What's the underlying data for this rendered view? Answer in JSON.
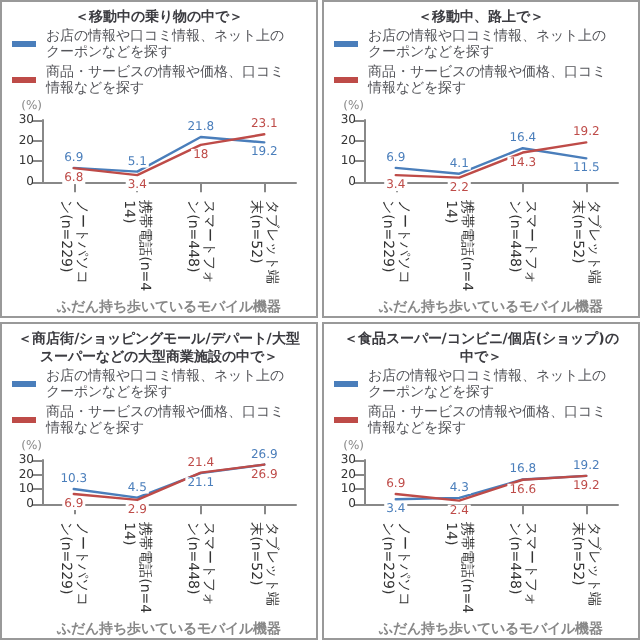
{
  "chart_data": [
    {
      "type": "line",
      "title": "＜移動中の乗り物の中で＞",
      "xlabel": "ふだん持ち歩いているモバイル機器",
      "ylabel": "(%)",
      "categories": [
        "ノートパソコン(n=229)",
        "携帯電話(n=414)",
        "スマートフォン(n=448)",
        "タブレット端末(n=52)"
      ],
      "series": [
        {
          "name": "お店の情報や口コミ情報、ネット上のクーポンなどを探す",
          "color": "#4a7ebb",
          "values": [
            6.9,
            5.1,
            21.8,
            19.2
          ]
        },
        {
          "name": "商品・サービスの情報や価格、口コミ情報などを探す",
          "color": "#be4b48",
          "values": [
            6.8,
            3.4,
            18.0,
            23.1
          ]
        }
      ],
      "ylim": [
        0,
        30
      ],
      "yticks": [
        0,
        10,
        20,
        30
      ],
      "grid": false,
      "legend": "top left",
      "marker": "none",
      "line_style": "solid",
      "data_labels": true
    },
    {
      "type": "line",
      "title": "＜移動中、路上で＞",
      "xlabel": "ふだん持ち歩いているモバイル機器",
      "ylabel": "(%)",
      "categories": [
        "ノートパソコン(n=229)",
        "携帯電話(n=414)",
        "スマートフォン(n=448)",
        "タブレット端末(n=52)"
      ],
      "series": [
        {
          "name": "お店の情報や口コミ情報、ネット上のクーポンなどを探す",
          "color": "#4a7ebb",
          "values": [
            6.9,
            4.1,
            16.4,
            11.5
          ]
        },
        {
          "name": "商品・サービスの情報や価格、口コミ情報などを探す",
          "color": "#be4b48",
          "values": [
            3.4,
            2.2,
            14.3,
            19.2
          ]
        }
      ],
      "ylim": [
        0,
        30
      ],
      "yticks": [
        0,
        10,
        20,
        30
      ],
      "grid": false,
      "legend": "top left",
      "marker": "none",
      "line_style": "solid",
      "data_labels": true
    },
    {
      "type": "line",
      "title": "＜商店街/ショッピングモール/デパート/大型スーパーなどの大型商業施設の中で＞",
      "xlabel": "ふだん持ち歩いているモバイル機器",
      "ylabel": "(%)",
      "categories": [
        "ノートパソコン(n=229)",
        "携帯電話(n=414)",
        "スマートフォン(n=448)",
        "タブレット端末(n=52)"
      ],
      "series": [
        {
          "name": "お店の情報や口コミ情報、ネット上のクーポンなどを探す",
          "color": "#4a7ebb",
          "values": [
            10.3,
            4.5,
            21.1,
            26.9
          ]
        },
        {
          "name": "商品・サービスの情報や価格、口コミ情報などを探す",
          "color": "#be4b48",
          "values": [
            6.9,
            2.9,
            21.4,
            26.9
          ]
        }
      ],
      "ylim": [
        0,
        30
      ],
      "yticks": [
        0,
        10,
        20,
        30
      ],
      "grid": false,
      "legend": "top left",
      "marker": "none",
      "line_style": "solid",
      "data_labels": true
    },
    {
      "type": "line",
      "title": "＜食品スーパー/コンビニ/個店(ショップ)の中で＞",
      "xlabel": "ふだん持ち歩いているモバイル機器",
      "ylabel": "(%)",
      "categories": [
        "ノートパソコン(n=229)",
        "携帯電話(n=414)",
        "スマートフォン(n=448)",
        "タブレット端末(n=52)"
      ],
      "series": [
        {
          "name": "お店の情報や口コミ情報、ネット上のクーポンなどを探す",
          "color": "#4a7ebb",
          "values": [
            3.4,
            4.3,
            16.8,
            19.2
          ]
        },
        {
          "name": "商品・サービスの情報や価格、口コミ情報などを探す",
          "color": "#be4b48",
          "values": [
            6.9,
            2.4,
            16.6,
            19.2
          ]
        }
      ],
      "ylim": [
        0,
        30
      ],
      "yticks": [
        0,
        10,
        20,
        30
      ],
      "grid": false,
      "legend": "top left",
      "marker": "none",
      "line_style": "solid",
      "data_labels": true
    }
  ]
}
